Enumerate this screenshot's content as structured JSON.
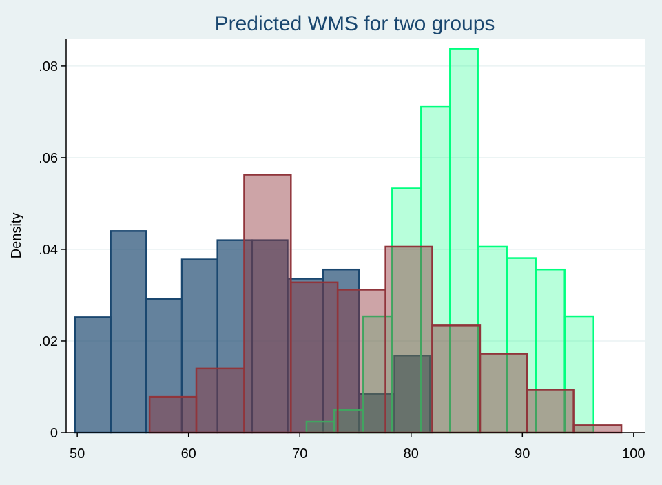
{
  "chart_data": {
    "type": "histogram",
    "title": "Predicted WMS  for two groups",
    "xlabel": "",
    "ylabel": "Density",
    "xlim": [
      49,
      101
    ],
    "ylim": [
      0,
      0.086
    ],
    "x_ticks": [
      50,
      60,
      70,
      80,
      90,
      100
    ],
    "y_ticks": [
      0,
      0.02,
      0.04,
      0.06,
      0.08
    ],
    "y_tick_labels": [
      "0",
      ".02",
      ".04",
      ".06",
      ".08"
    ],
    "grid": true,
    "series": [
      {
        "color": "#1a476f",
        "fill_opacity": 0.68,
        "bins": [
          {
            "x0": 49.8,
            "x1": 53.0,
            "y": 0.0252
          },
          {
            "x0": 53.0,
            "x1": 56.2,
            "y": 0.044
          },
          {
            "x0": 56.2,
            "x1": 59.4,
            "y": 0.0292
          },
          {
            "x0": 59.4,
            "x1": 62.6,
            "y": 0.0378
          },
          {
            "x0": 62.6,
            "x1": 65.7,
            "y": 0.042
          },
          {
            "x0": 65.7,
            "x1": 68.9,
            "y": 0.042
          },
          {
            "x0": 68.9,
            "x1": 72.1,
            "y": 0.0336
          },
          {
            "x0": 72.1,
            "x1": 75.3,
            "y": 0.0356
          },
          {
            "x0": 75.3,
            "x1": 78.5,
            "y": 0.0084
          },
          {
            "x0": 78.5,
            "x1": 81.7,
            "y": 0.0168
          }
        ]
      },
      {
        "color": "#00ff7f",
        "fill_opacity": 0.28,
        "bins": [
          {
            "x0": 70.6,
            "x1": 73.1,
            "y": 0.0024
          },
          {
            "x0": 73.1,
            "x1": 75.7,
            "y": 0.005
          },
          {
            "x0": 75.7,
            "x1": 78.3,
            "y": 0.0254
          },
          {
            "x0": 78.3,
            "x1": 80.9,
            "y": 0.0533
          },
          {
            "x0": 80.9,
            "x1": 83.5,
            "y": 0.0711
          },
          {
            "x0": 83.5,
            "x1": 86.0,
            "y": 0.0838
          },
          {
            "x0": 86.0,
            "x1": 88.6,
            "y": 0.0406
          },
          {
            "x0": 88.6,
            "x1": 91.2,
            "y": 0.0381
          },
          {
            "x0": 91.2,
            "x1": 93.8,
            "y": 0.0356
          },
          {
            "x0": 93.8,
            "x1": 96.4,
            "y": 0.0254
          }
        ]
      },
      {
        "color": "#90353b",
        "fill_opacity": 0.45,
        "bins": [
          {
            "x0": 56.5,
            "x1": 60.7,
            "y": 0.0078
          },
          {
            "x0": 60.7,
            "x1": 65.0,
            "y": 0.014
          },
          {
            "x0": 65.0,
            "x1": 69.2,
            "y": 0.0563
          },
          {
            "x0": 69.2,
            "x1": 73.4,
            "y": 0.0328
          },
          {
            "x0": 73.4,
            "x1": 77.7,
            "y": 0.0312
          },
          {
            "x0": 77.7,
            "x1": 81.9,
            "y": 0.0406
          },
          {
            "x0": 81.9,
            "x1": 86.2,
            "y": 0.0234
          },
          {
            "x0": 86.2,
            "x1": 90.4,
            "y": 0.0172
          },
          {
            "x0": 90.4,
            "x1": 94.6,
            "y": 0.0094
          },
          {
            "x0": 94.6,
            "x1": 98.9,
            "y": 0.0016
          }
        ]
      }
    ]
  }
}
